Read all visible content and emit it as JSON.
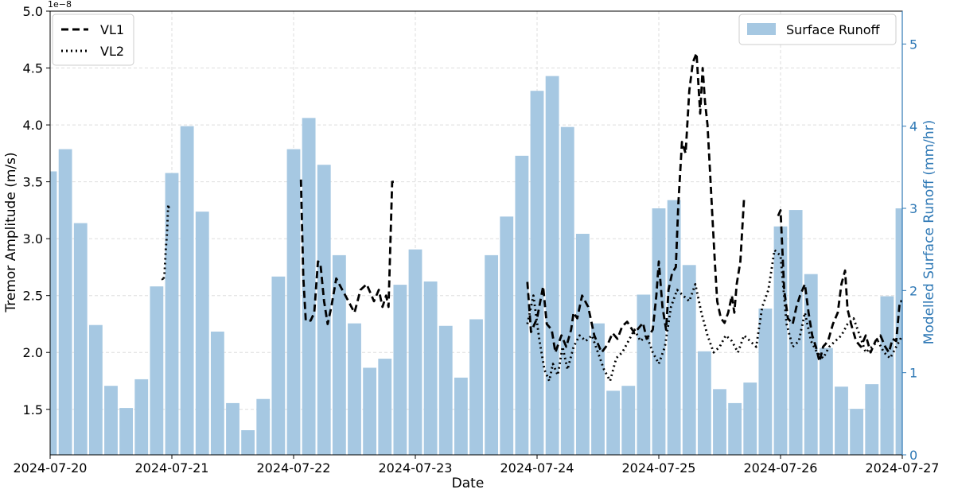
{
  "chart_data": {
    "type": "bar+line",
    "title": "",
    "xlabel": "Date",
    "ylabel_left": "Tremor Amplitude (m/s)",
    "ylabel_right": "Modelled Surface Runoff (mm/hr)",
    "left_scale_label": "1e−8",
    "x_ticks": [
      "2024-07-20",
      "2024-07-21",
      "2024-07-22",
      "2024-07-23",
      "2024-07-24",
      "2024-07-25",
      "2024-07-26",
      "2024-07-27"
    ],
    "left_ylim": [
      1.1,
      5.0
    ],
    "left_ticks": [
      "1.5",
      "2.0",
      "2.5",
      "3.0",
      "3.5",
      "4.0",
      "4.5",
      "5.0"
    ],
    "right_ylim": [
      0,
      5.4
    ],
    "right_ticks": [
      "0",
      "1",
      "2",
      "3",
      "4",
      "5"
    ],
    "grid": true,
    "colors": {
      "bars": "#a6c8e2",
      "right_axis": "#2e78b5",
      "lines": "#000000"
    },
    "legend_left": [
      {
        "name": "VL1",
        "style": "dashed"
      },
      {
        "name": "VL2",
        "style": "dotted"
      }
    ],
    "legend_right": [
      {
        "name": "Surface Runoff",
        "style": "bar"
      }
    ],
    "bars": {
      "name": "Surface Runoff",
      "days_from_start": [
        0.0,
        0.125,
        0.25,
        0.375,
        0.5,
        0.625,
        0.75,
        0.875,
        1.0,
        1.125,
        1.25,
        1.375,
        1.5,
        1.625,
        1.75,
        1.875,
        2.0,
        2.125,
        2.25,
        2.375,
        2.5,
        2.625,
        2.75,
        2.875,
        3.0,
        3.125,
        3.25,
        3.375,
        3.5,
        3.625,
        3.75,
        3.875,
        4.0,
        4.125,
        4.25,
        4.375,
        4.5,
        4.625,
        4.75,
        4.875,
        5.0,
        5.125,
        5.25,
        5.375,
        5.5,
        5.625,
        5.75,
        5.875,
        6.0,
        6.125,
        6.25,
        6.375,
        6.5,
        6.625,
        6.75,
        6.875,
        7.0
      ],
      "values": [
        3.45,
        3.72,
        2.82,
        1.58,
        0.84,
        0.57,
        0.92,
        2.05,
        3.43,
        4.0,
        2.96,
        1.5,
        0.63,
        0.3,
        0.68,
        2.17,
        3.72,
        4.1,
        3.53,
        2.43,
        1.6,
        1.06,
        1.17,
        2.07,
        2.5,
        2.11,
        1.57,
        0.94,
        1.65,
        2.43,
        2.9,
        3.64,
        4.43,
        4.61,
        3.99,
        2.69,
        1.6,
        0.78,
        0.84,
        1.95,
        3.0,
        3.1,
        2.31,
        1.26,
        0.8,
        0.63,
        0.88,
        1.78,
        2.78,
        2.98,
        2.2,
        1.3,
        0.83,
        0.56,
        0.86,
        1.93,
        3.0
      ]
    },
    "series": [
      {
        "name": "VL1",
        "segments": [
          {
            "days_from_start": [
              2.06,
              2.08,
              2.1,
              2.14,
              2.17,
              2.2,
              2.22,
              2.25,
              2.28,
              2.31,
              2.35,
              2.4,
              2.45,
              2.5,
              2.55,
              2.6,
              2.66,
              2.7,
              2.73,
              2.76,
              2.78,
              2.81,
              2.83
            ],
            "values": [
              3.52,
              2.66,
              2.28,
              2.28,
              2.35,
              2.8,
              2.78,
              2.45,
              2.25,
              2.4,
              2.65,
              2.55,
              2.45,
              2.35,
              2.55,
              2.6,
              2.45,
              2.55,
              2.4,
              2.5,
              2.4,
              3.5,
              3.5
            ]
          },
          {
            "days_from_start": [
              3.92,
              3.95,
              4.0,
              4.05,
              4.08,
              4.12,
              4.15,
              4.2,
              4.24,
              4.28,
              4.3,
              4.33,
              4.37,
              4.42,
              4.47,
              4.53,
              4.58,
              4.62,
              4.66,
              4.7,
              4.74,
              4.8,
              4.87,
              4.9,
              4.95,
              4.98,
              5.0,
              5.03,
              5.06,
              5.08,
              5.11,
              5.14,
              5.16,
              5.19,
              5.22,
              5.25,
              5.28,
              5.31,
              5.34,
              5.36,
              5.38,
              5.4,
              5.42,
              5.44,
              5.46,
              5.48,
              5.51,
              5.54,
              5.57,
              5.6,
              5.62,
              5.64,
              5.67,
              5.7
            ],
            "values": [
              2.62,
              2.18,
              2.3,
              2.58,
              2.25,
              2.2,
              2.0,
              2.15,
              2.05,
              2.2,
              2.35,
              2.3,
              2.5,
              2.4,
              2.15,
              2.0,
              2.07,
              2.17,
              2.12,
              2.23,
              2.27,
              2.17,
              2.26,
              2.12,
              2.2,
              2.5,
              2.8,
              2.4,
              2.2,
              2.55,
              2.7,
              2.75,
              3.3,
              3.85,
              3.75,
              4.3,
              4.55,
              4.63,
              4.1,
              4.5,
              4.2,
              4.0,
              3.6,
              3.2,
              2.8,
              2.45,
              2.3,
              2.26,
              2.35,
              2.5,
              2.35,
              2.6,
              2.8,
              3.35
            ]
          },
          {
            "days_from_start": [
              5.98,
              6.0,
              6.03,
              6.06,
              6.1,
              6.13,
              6.16,
              6.2,
              6.23,
              6.26,
              6.29,
              6.32,
              6.35,
              6.39,
              6.43,
              6.47,
              6.5,
              6.53,
              6.55,
              6.58,
              6.62,
              6.66,
              6.7,
              6.74,
              6.78,
              6.82,
              6.86,
              6.89,
              6.92,
              6.95,
              6.98,
              7.0
            ],
            "values": [
              3.2,
              3.25,
              2.55,
              2.3,
              2.25,
              2.4,
              2.5,
              2.6,
              2.35,
              2.15,
              2.05,
              1.92,
              2.05,
              2.1,
              2.25,
              2.35,
              2.6,
              2.72,
              2.38,
              2.25,
              2.1,
              2.05,
              2.15,
              2.0,
              2.1,
              2.15,
              2.05,
              2.0,
              2.12,
              2.1,
              2.45,
              2.45
            ]
          }
        ]
      },
      {
        "name": "VL2",
        "segments": [
          {
            "days_from_start": [
              0.92,
              0.93,
              0.94,
              0.95,
              0.96,
              0.97,
              0.98
            ],
            "values": [
              2.65,
              2.63,
              2.7,
              2.9,
              3.05,
              3.3,
              3.25
            ]
          },
          {
            "days_from_start": [
              3.92,
              3.97,
              4.02,
              4.06,
              4.1,
              4.13,
              4.17,
              4.21,
              4.25,
              4.3,
              4.35,
              4.4,
              4.45,
              4.5,
              4.55,
              4.6,
              4.65,
              4.7,
              4.75,
              4.8,
              4.85,
              4.9,
              4.95,
              5.0,
              5.05,
              5.1,
              5.15,
              5.2,
              5.25,
              5.3,
              5.35,
              5.4,
              5.45,
              5.5,
              5.55,
              5.6,
              5.65,
              5.7,
              5.75,
              5.8,
              5.85,
              5.9,
              5.95,
              6.0,
              6.05,
              6.1,
              6.15,
              6.2,
              6.25,
              6.3,
              6.35,
              6.4,
              6.45,
              6.5,
              6.55,
              6.6,
              6.65,
              6.7,
              6.75,
              6.8,
              6.85,
              6.9,
              6.95,
              7.0
            ],
            "values": [
              2.25,
              2.5,
              2.1,
              1.85,
              1.75,
              1.9,
              1.8,
              2.05,
              1.85,
              2.05,
              2.15,
              2.1,
              2.15,
              2.0,
              1.85,
              1.75,
              1.95,
              2.0,
              2.1,
              2.2,
              2.1,
              2.15,
              2.0,
              1.9,
              2.05,
              2.4,
              2.55,
              2.5,
              2.45,
              2.6,
              2.35,
              2.15,
              2.0,
              2.05,
              2.15,
              2.1,
              2.0,
              2.15,
              2.1,
              2.05,
              2.4,
              2.55,
              2.9,
              2.85,
              2.25,
              2.05,
              2.1,
              2.35,
              2.1,
              2.0,
              1.95,
              2.05,
              2.1,
              2.15,
              2.25,
              2.3,
              2.15,
              2.0,
              2.05,
              2.1,
              2.0,
              1.95,
              2.05,
              2.15
            ]
          }
        ]
      }
    ]
  }
}
